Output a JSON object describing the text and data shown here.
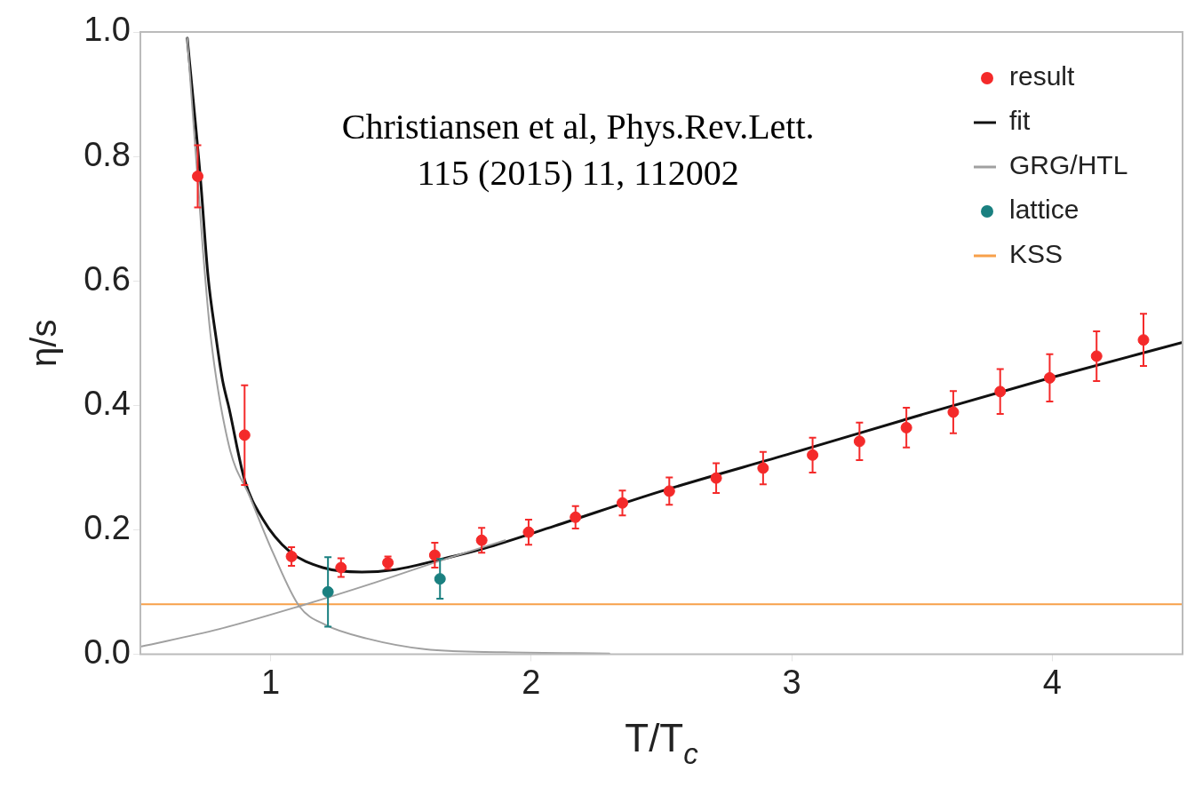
{
  "chart_data": {
    "type": "scatter",
    "xlabel": "T/T$_{c}$",
    "ylabel": "η/s",
    "xlim": [
      0.5,
      4.5
    ],
    "xticks": [
      1,
      2,
      3,
      4
    ],
    "ylim": [
      0,
      1
    ],
    "yticks": [
      {
        "value": 0,
        "label": "0.0"
      },
      {
        "value": 0.2,
        "label": "0.2"
      },
      {
        "value": 0.4,
        "label": "0.4"
      },
      {
        "value": 0.6,
        "label": "0.6"
      },
      {
        "value": 0.8,
        "label": "0.8"
      },
      {
        "value": 1,
        "label": "1.0"
      }
    ],
    "grid": false,
    "legend": "top right",
    "annotations": [
      "Christiansen et al, Phys.Rev.Lett.\n115 (2015) 11, 112002"
    ],
    "series": [
      {
        "name": "GRG/HTL",
        "type": "line",
        "color": "#a0a0a0",
        "x": [
          0.68,
          0.74,
          0.77,
          0.84,
          0.92,
          1.01,
          1.11,
          1.21,
          1.37,
          1.59,
          1.9,
          2.3
        ],
        "values": [
          0.99,
          0.65,
          0.51,
          0.335,
          0.253,
          0.162,
          0.077,
          0.047,
          0.025,
          0.008,
          0.003,
          0.001
        ]
      },
      {
        "type": "line",
        "color": "#a0a0a0",
        "x": [
          0.5,
          0.8,
          1.11,
          1.4,
          1.65,
          1.9
        ],
        "values": [
          0.012,
          0.04,
          0.077,
          0.115,
          0.15,
          0.183
        ]
      },
      {
        "name": "fit",
        "type": "line",
        "color": "#111111",
        "x": [
          0.68,
          0.73,
          0.76,
          0.79,
          0.815,
          0.84,
          0.9,
          0.97,
          1.07,
          1.2,
          1.35,
          1.48,
          1.65,
          1.82,
          2.09,
          2.5,
          3.0,
          3.5,
          4.0,
          4.5
        ],
        "values": [
          0.99,
          0.767,
          0.606,
          0.51,
          0.441,
          0.396,
          0.28,
          0.217,
          0.166,
          0.139,
          0.132,
          0.136,
          0.152,
          0.17,
          0.206,
          0.262,
          0.323,
          0.385,
          0.445,
          0.501
        ]
      },
      {
        "name": "KSS",
        "type": "line",
        "color": "#f7a04a",
        "x": [
          0.5,
          4.5
        ],
        "values": [
          0.08,
          0.08
        ]
      },
      {
        "name": "result",
        "color": "#f42a2a",
        "x": [
          0.72,
          0.9,
          1.08,
          1.27,
          1.45,
          1.63,
          1.81,
          1.99,
          2.17,
          2.35,
          2.53,
          2.71,
          2.89,
          3.08,
          3.26,
          3.44,
          3.62,
          3.8,
          3.99,
          4.17,
          4.35
        ],
        "values": [
          0.768,
          0.352,
          0.157,
          0.139,
          0.147,
          0.159,
          0.183,
          0.196,
          0.22,
          0.243,
          0.262,
          0.283,
          0.299,
          0.32,
          0.342,
          0.364,
          0.389,
          0.422,
          0.444,
          0.479,
          0.505
        ],
        "errors": [
          0.05,
          0.08,
          0.015,
          0.015,
          0.01,
          0.02,
          0.02,
          0.02,
          0.018,
          0.02,
          0.022,
          0.024,
          0.026,
          0.028,
          0.03,
          0.032,
          0.034,
          0.036,
          0.038,
          0.04,
          0.042
        ]
      },
      {
        "name": "lattice",
        "color": "#1a8080",
        "x": [
          1.22,
          1.65
        ],
        "values": [
          0.1,
          0.121
        ],
        "errors": [
          0.056,
          0.032
        ]
      }
    ]
  }
}
